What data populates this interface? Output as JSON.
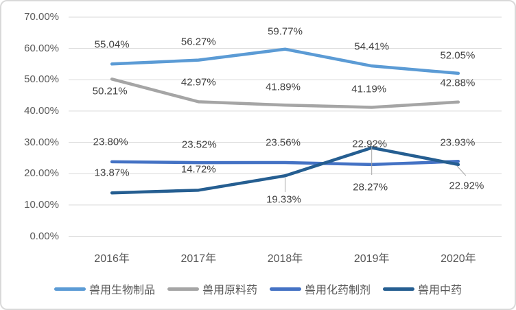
{
  "chart_data": {
    "type": "line",
    "title": "",
    "xlabel": "",
    "ylabel": "",
    "ylim": [
      0,
      70
    ],
    "grid": "horizontal",
    "legend_position": "bottom",
    "categories": [
      "2016年",
      "2017年",
      "2018年",
      "2019年",
      "2020年"
    ],
    "y_ticks": [
      "70.00%",
      "60.00%",
      "50.00%",
      "40.00%",
      "30.00%",
      "20.00%",
      "10.00%",
      "0.00%"
    ],
    "series": [
      {
        "name": "兽用生物制品",
        "color": "#5B9BD5",
        "values": [
          55.04,
          56.27,
          59.77,
          54.41,
          52.05
        ],
        "labels": [
          "55.04%",
          "56.27%",
          "59.77%",
          "54.41%",
          "52.05%"
        ]
      },
      {
        "name": "兽用原料药",
        "color": "#A5A5A5",
        "values": [
          50.21,
          42.97,
          41.89,
          41.19,
          42.88
        ],
        "labels": [
          "50.21%",
          "42.97%",
          "41.89%",
          "41.19%",
          "42.88%"
        ]
      },
      {
        "name": "兽用化药制剂",
        "color": "#4472C4",
        "values": [
          23.8,
          23.52,
          23.56,
          22.92,
          23.93
        ],
        "labels": [
          "23.80%",
          "23.52%",
          "23.56%",
          "22.92%",
          "23.93%"
        ]
      },
      {
        "name": "兽用中药",
        "color": "#255E91",
        "values": [
          13.87,
          14.72,
          19.33,
          28.27,
          22.92
        ],
        "labels": [
          "13.87%",
          "14.72%",
          "19.33%",
          "28.27%",
          "22.92%"
        ]
      }
    ],
    "colors": {
      "gridline": "#D9D9D9",
      "axis_text": "#595959",
      "data_label_text": "#3F3F3F",
      "leader_line": "#A6A6A6",
      "background": "#FFFFFF",
      "border": "#D9D9D9"
    }
  }
}
